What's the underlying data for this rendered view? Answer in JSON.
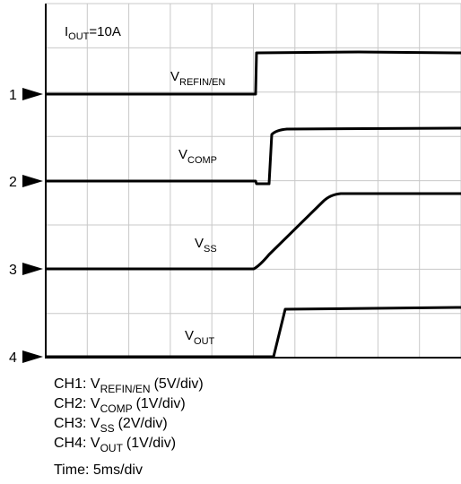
{
  "annotation": {
    "main": "I",
    "sub": "OUT",
    "rest": "=10A"
  },
  "markers": [
    "1",
    "2",
    "3",
    "4"
  ],
  "trace_labels": [
    {
      "main": "V",
      "sub": "REFIN/EN"
    },
    {
      "main": "V",
      "sub": "COMP"
    },
    {
      "main": "V",
      "sub": "SS"
    },
    {
      "main": "V",
      "sub": "OUT"
    }
  ],
  "legend": [
    {
      "prefix": "CH1: V",
      "sub": "REFIN/EN",
      "rest": "(5V/div)"
    },
    {
      "prefix": "CH2: V",
      "sub": "COMP",
      "rest": "(1V/div)"
    },
    {
      "prefix": "CH3: V",
      "sub": "SS",
      "rest": "(2V/div)"
    },
    {
      "prefix": "CH4: V",
      "sub": "OUT",
      "rest": "(1V/div)"
    }
  ],
  "time": "Time: 5ms/div"
}
